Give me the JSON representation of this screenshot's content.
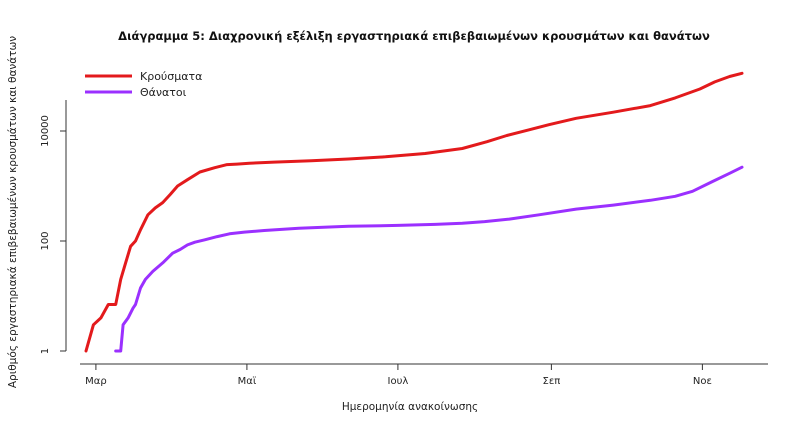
{
  "chart_data": {
    "type": "line",
    "title": "Διάγραμμα 5: Διαχρονική εξέλιξη εργαστηριακά επιβεβαιωμένων κρουσμάτων και θανάτων",
    "xlabel": "Ημερομηνία ανακοίνωσης",
    "ylabel": "Αριθμός εργαστηριακά επιβεβαιωμένων κρουσμάτων και θανάτων",
    "x_ticks": [
      "Μαρ",
      "Μαϊ",
      "Ιουλ",
      "Σεπ",
      "Νοε"
    ],
    "y_ticks": [
      "1",
      "100",
      "10000"
    ],
    "y_scale": "log",
    "ylim": [
      1,
      250000
    ],
    "x_unit": "days since 26 Feb 2020",
    "xlim": [
      -7,
      271
    ],
    "grid": false,
    "legend_position": "top-left",
    "series": [
      {
        "name": "Κρούσματα",
        "color": "#e31a1c",
        "x": [
          0,
          3,
          6,
          9,
          12,
          14,
          16,
          18,
          20,
          22,
          25,
          28,
          31,
          34,
          37,
          41,
          46,
          52,
          57,
          61,
          66,
          76,
          91,
          106,
          121,
          137,
          152,
          162,
          170,
          179,
          187,
          198,
          213,
          228,
          238,
          248,
          254,
          260,
          265
        ],
        "y": [
          1,
          3,
          4,
          7,
          7,
          20,
          40,
          80,
          100,
          160,
          300,
          400,
          500,
          700,
          1000,
          1300,
          1800,
          2150,
          2450,
          2500,
          2600,
          2720,
          2880,
          3100,
          3400,
          3900,
          4800,
          6400,
          8300,
          10500,
          13000,
          17000,
          22000,
          29000,
          40000,
          58000,
          78000,
          98000,
          112000
        ]
      },
      {
        "name": "Θάνατοι",
        "color": "#9b30ff",
        "x": [
          12,
          14,
          15,
          17,
          19,
          20,
          22,
          24,
          27,
          31,
          35,
          38,
          41,
          44,
          48,
          53,
          58,
          64,
          72,
          86,
          106,
          126,
          141,
          152,
          161,
          171,
          183,
          198,
          213,
          228,
          238,
          245,
          253,
          260,
          265
        ],
        "y": [
          1,
          1,
          3,
          4,
          6,
          7,
          14,
          20,
          28,
          40,
          60,
          70,
          85,
          95,
          105,
          120,
          135,
          145,
          155,
          170,
          185,
          192,
          200,
          210,
          225,
          250,
          300,
          380,
          450,
          550,
          650,
          800,
          1200,
          1700,
          2200
        ]
      }
    ]
  }
}
